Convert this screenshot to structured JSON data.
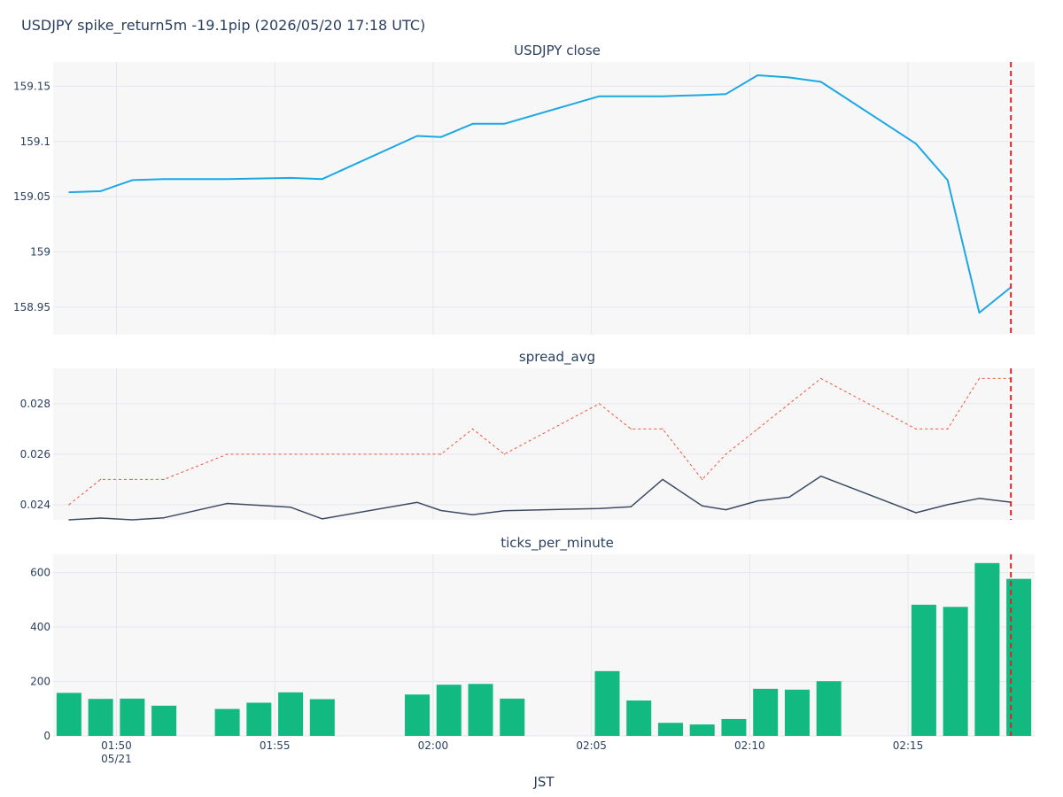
{
  "title": "USDJPY spike_return5m -19.1pip (2026/05/20 17:18 UTC)",
  "colors": {
    "close": "#1ca8e3",
    "spread_dotted": "#ef553b",
    "spread_solid": "#3d4b63",
    "bars": "#12b981",
    "marker": "#d62728",
    "plot_bg": "#f7f7f8",
    "grid": "#e5e7ee"
  },
  "chart_data": [
    {
      "type": "line",
      "title": "USDJPY close",
      "x": [
        "01:48:30",
        "01:49:30",
        "01:50:30",
        "01:51:30",
        "01:53:30",
        "01:55:30",
        "01:56:30",
        "01:59:30",
        "02:00:15",
        "02:01:15",
        "02:02:15",
        "02:05:15",
        "02:06:15",
        "02:07:15",
        "02:08:30",
        "02:09:15",
        "02:10:15",
        "02:11:15",
        "02:12:15",
        "02:15:15",
        "02:16:15",
        "02:17:15",
        "02:18:15"
      ],
      "series": [
        {
          "values": [
            159.054,
            159.055,
            159.065,
            159.066,
            159.066,
            159.067,
            159.066,
            159.105,
            159.104,
            159.116,
            159.116,
            159.141,
            159.141,
            159.141,
            159.142,
            159.143,
            159.16,
            159.158,
            159.154,
            159.098,
            159.065,
            158.945,
            158.968
          ]
        }
      ],
      "ylim": [
        158.925,
        159.172
      ],
      "yticks": [
        "158.95",
        "159",
        "159.05",
        "159.1",
        "159.15"
      ],
      "grid": true
    },
    {
      "type": "line",
      "title": "spread_avg",
      "x": [
        "01:48:30",
        "01:49:30",
        "01:50:30",
        "01:51:30",
        "01:53:30",
        "01:55:30",
        "01:56:30",
        "01:59:30",
        "02:00:15",
        "02:01:15",
        "02:02:15",
        "02:05:15",
        "02:06:15",
        "02:07:15",
        "02:08:30",
        "02:09:15",
        "02:10:15",
        "02:11:15",
        "02:12:15",
        "02:15:15",
        "02:16:15",
        "02:17:15",
        "02:18:15"
      ],
      "series": [
        {
          "style": "dotted",
          "values": [
            0.024,
            0.025,
            0.025,
            0.025,
            0.026,
            0.026,
            0.026,
            0.026,
            0.026,
            0.027,
            0.026,
            0.028,
            0.027,
            0.027,
            0.025,
            0.026,
            0.027,
            0.028,
            0.029,
            0.027,
            0.027,
            0.029,
            0.029
          ]
        },
        {
          "style": "solid",
          "values": [
            0.0234,
            0.02347,
            0.0234,
            0.02348,
            0.02405,
            0.0239,
            0.02344,
            0.02409,
            0.02377,
            0.0236,
            0.02376,
            0.02385,
            0.02392,
            0.025,
            0.02395,
            0.0238,
            0.02415,
            0.0243,
            0.02513,
            0.02368,
            0.024,
            0.02425,
            0.0241
          ]
        }
      ],
      "ylim": [
        0.0234,
        0.0294
      ],
      "yticks": [
        "0.024",
        "0.026",
        "0.028"
      ],
      "grid": true
    },
    {
      "type": "bar",
      "title": "ticks_per_minute",
      "x": [
        "01:48:30",
        "01:49:30",
        "01:50:30",
        "01:51:30",
        "01:53:30",
        "01:54:30",
        "01:55:30",
        "01:56:30",
        "01:59:30",
        "02:00:30",
        "02:01:30",
        "02:02:30",
        "02:05:30",
        "02:06:30",
        "02:07:30",
        "02:08:30",
        "02:09:30",
        "02:10:30",
        "02:11:30",
        "02:12:30",
        "02:15:30",
        "02:16:30",
        "02:17:30",
        "02:18:30"
      ],
      "values": [
        158,
        136,
        137,
        111,
        99,
        122,
        160,
        135,
        152,
        188,
        191,
        137,
        238,
        130,
        48,
        42,
        62,
        173,
        170,
        201,
        482,
        474,
        635,
        577
      ],
      "ylim": [
        0,
        667
      ],
      "yticks": [
        "0",
        "200",
        "400",
        "600"
      ],
      "grid": true
    }
  ],
  "xaxis": {
    "range": [
      "01:48:00",
      "02:19:00"
    ],
    "ticks": [
      "01:50",
      "01:55",
      "02:00",
      "02:05",
      "02:10",
      "02:15"
    ],
    "date_label": "05/21",
    "title": "JST"
  },
  "marker_x": "02:18:15"
}
